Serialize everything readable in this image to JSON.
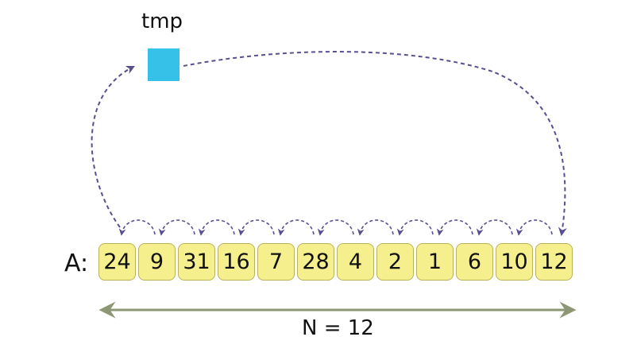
{
  "tmp_label": "tmp",
  "array_label": "A:",
  "array_values": [
    "24",
    "9",
    "31",
    "16",
    "7",
    "28",
    "4",
    "2",
    "1",
    "6",
    "10",
    "12"
  ],
  "length_label": "N = 12",
  "colors": {
    "tmp_box": "#36c1e8",
    "cell_fill": "#f5f08d",
    "cell_border": "#b9b25a",
    "arrow": "#574f8f",
    "length_arrow": "#8d9776"
  }
}
